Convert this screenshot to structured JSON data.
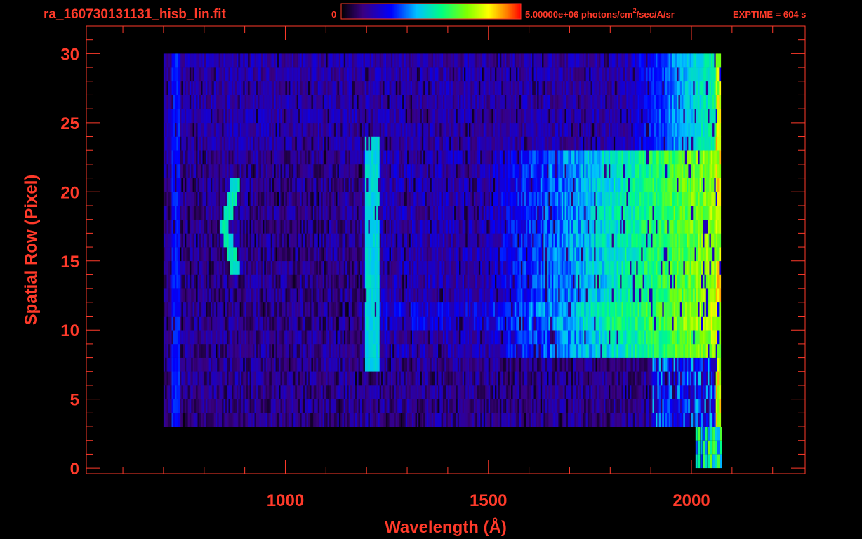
{
  "header": {
    "filename": "ra_160730131131_hisb_lin.fit",
    "colorbar_min": "0",
    "colorbar_max_value": "5.00000e+06",
    "colorbar_units_pre": "photons/cm",
    "colorbar_units_sup": "2",
    "colorbar_units_post": "/sec/A/sr",
    "exptime": "EXPTIME = 604 s"
  },
  "colors": {
    "axis": "#ff3a2a",
    "background": "#000000",
    "colormap": [
      "#000000",
      "#3a0080",
      "#0000ff",
      "#00c0ff",
      "#00ff80",
      "#80ff00",
      "#ffff00",
      "#ff8000",
      "#ff0000"
    ]
  },
  "chart_data": {
    "type": "heatmap",
    "xlabel": "Wavelength (Å)",
    "ylabel": "Spatial Row (Pixel)",
    "x_ticks": [
      "1000",
      "1500",
      "2000"
    ],
    "y_ticks": [
      "0",
      "5",
      "10",
      "15",
      "20",
      "25",
      "30"
    ],
    "xlim": [
      510,
      2280
    ],
    "ylim": [
      -0.4,
      32
    ],
    "colorbar_range": [
      0,
      5000000
    ],
    "grid": false,
    "legend": "colorbar top",
    "features": [
      {
        "feature": "detector edge",
        "x_range": [
          700,
          2070
        ],
        "y_range": [
          3,
          30
        ]
      },
      {
        "feature": "bright slit region",
        "x_range": [
          1190,
          2070
        ],
        "y_range": [
          8,
          23
        ]
      },
      {
        "feature": "emission line",
        "x": 1216,
        "y_range": [
          7,
          24
        ],
        "level": 0.45
      },
      {
        "feature": "curved emission line",
        "x": 870,
        "y_range": [
          14,
          21
        ],
        "level": 0.5
      },
      {
        "feature": "continuum rise",
        "x_range": [
          1500,
          2060
        ],
        "level_start": 0.2,
        "level_end": 0.72
      }
    ]
  }
}
